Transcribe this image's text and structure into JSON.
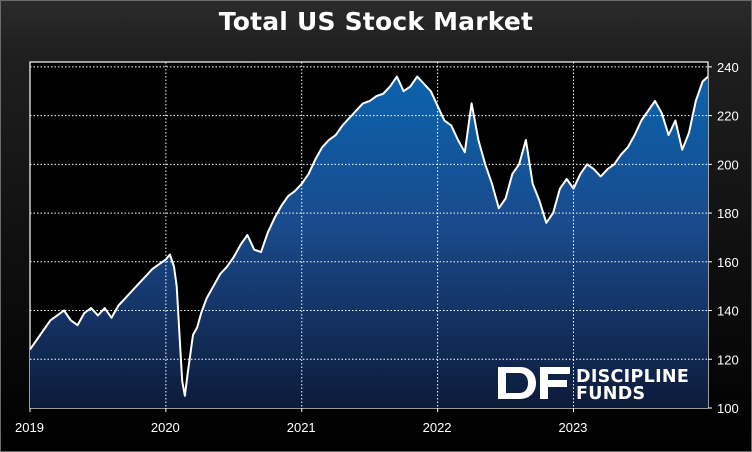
{
  "chart_data": {
    "type": "area",
    "title": "Total US Stock Market",
    "xlabel": "",
    "ylabel": "",
    "x_ticks": [
      "2019",
      "2020",
      "2021",
      "2022",
      "2023"
    ],
    "y_ticks": [
      100,
      120,
      140,
      160,
      180,
      200,
      220,
      240
    ],
    "xlim": [
      2019.0,
      2023.99
    ],
    "ylim": [
      100,
      242
    ],
    "grid": true,
    "y_axis_position": "right",
    "colors": {
      "fill_top": "#0a63ad",
      "fill_bottom": "#0d1b3a",
      "line": "#ffffff",
      "grid": "#ffffff"
    },
    "series": [
      {
        "x": [
          2019.0,
          2019.05,
          2019.1,
          2019.15,
          2019.2,
          2019.25,
          2019.3,
          2019.35,
          2019.4,
          2019.45,
          2019.5,
          2019.55,
          2019.6,
          2019.65,
          2019.7,
          2019.75,
          2019.8,
          2019.85,
          2019.9,
          2019.95,
          2020.0,
          2020.03,
          2020.06,
          2020.08,
          2020.1,
          2020.12,
          2020.14,
          2020.16,
          2020.18,
          2020.2,
          2020.23,
          2020.26,
          2020.3,
          2020.35,
          2020.4,
          2020.45,
          2020.5,
          2020.55,
          2020.6,
          2020.65,
          2020.7,
          2020.75,
          2020.8,
          2020.85,
          2020.9,
          2020.95,
          2021.0,
          2021.05,
          2021.1,
          2021.15,
          2021.2,
          2021.25,
          2021.3,
          2021.35,
          2021.4,
          2021.45,
          2021.5,
          2021.55,
          2021.6,
          2021.65,
          2021.7,
          2021.75,
          2021.8,
          2021.85,
          2021.9,
          2021.95,
          2022.0,
          2022.05,
          2022.1,
          2022.15,
          2022.2,
          2022.25,
          2022.3,
          2022.35,
          2022.4,
          2022.45,
          2022.5,
          2022.55,
          2022.6,
          2022.65,
          2022.7,
          2022.75,
          2022.8,
          2022.85,
          2022.9,
          2022.95,
          2023.0,
          2023.05,
          2023.1,
          2023.15,
          2023.2,
          2023.25,
          2023.3,
          2023.35,
          2023.4,
          2023.45,
          2023.5,
          2023.55,
          2023.6,
          2023.65,
          2023.7,
          2023.75,
          2023.8,
          2023.85,
          2023.9,
          2023.95,
          2023.99
        ],
        "y": [
          124,
          128,
          132,
          136,
          138,
          140,
          136,
          134,
          139,
          141,
          138,
          141,
          137,
          142,
          145,
          148,
          151,
          154,
          157,
          159,
          161,
          163,
          158,
          150,
          130,
          111,
          105,
          114,
          122,
          130,
          133,
          139,
          145,
          150,
          155,
          158,
          162,
          167,
          171,
          165,
          164,
          172,
          178,
          183,
          187,
          189,
          192,
          196,
          202,
          207,
          210,
          212,
          216,
          219,
          222,
          225,
          226,
          228,
          229,
          232,
          236,
          230,
          232,
          236,
          233,
          230,
          224,
          218,
          216,
          210,
          205,
          225,
          210,
          200,
          192,
          182,
          186,
          196,
          200,
          210,
          192,
          185,
          176,
          180,
          190,
          194,
          190,
          196,
          200,
          198,
          195,
          198,
          200,
          204,
          207,
          212,
          218,
          222,
          226,
          221,
          212,
          218,
          206,
          213,
          226,
          234,
          236
        ]
      }
    ]
  },
  "logo": {
    "mark": "DF",
    "line1": "DISCIPLINE",
    "line2": "FUNDS"
  }
}
